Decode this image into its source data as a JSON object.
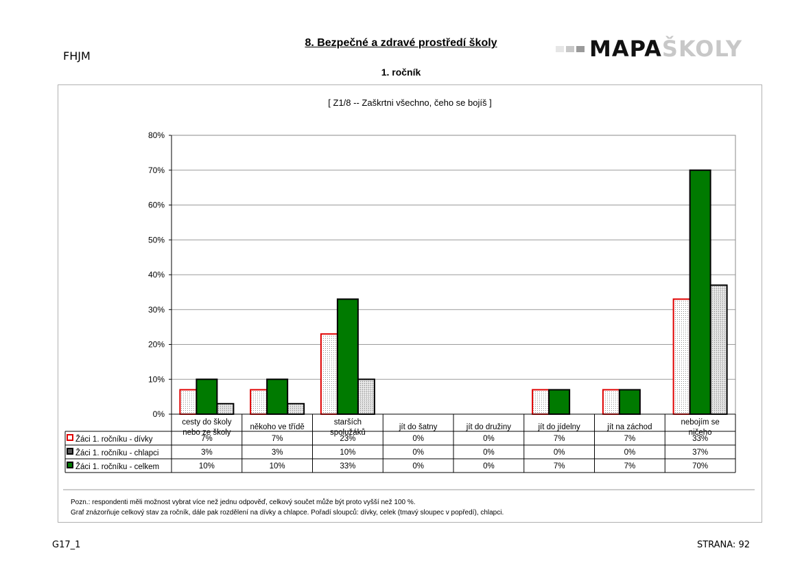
{
  "header": {
    "school_code": "FHJM",
    "title": "8. Bezpečné a zdravé prostředí školy",
    "subtitle": "1. ročník",
    "logo_dark": "MAPA",
    "logo_light": "ŠKOLY"
  },
  "footer": {
    "left": "G17_1",
    "right": "STRANA: 92"
  },
  "notes": [
    "Pozn.: respondenti měli možnost vybrat  více než jednu odpověď, celkový součet může být proto vyšší než 100 %.",
    "Graf znázorňuje celkový stav za ročník, dále pak rozdělení na dívky a chlapce. Pořadí sloupců: dívky, celek (tmavý sloupec v popředí), chlapci."
  ],
  "chart_data": {
    "type": "bar",
    "title": "[ Z1/8 -- Zaškrtni všechno, čeho se bojíš ]",
    "categories": [
      [
        "cesty do školy",
        "nebo ze školy"
      ],
      [
        "někoho ve třídě"
      ],
      [
        "starších",
        "spolužáků"
      ],
      [
        "jít do šatny"
      ],
      [
        "jít do družiny"
      ],
      [
        "jít do jídelny"
      ],
      [
        "jít na záchod"
      ],
      [
        "nebojím se",
        "ničeho"
      ]
    ],
    "ylim": [
      0,
      80
    ],
    "yticks": [
      "0%",
      "10%",
      "20%",
      "30%",
      "40%",
      "50%",
      "60%",
      "70%",
      "80%"
    ],
    "grid": true,
    "series": [
      {
        "name": "Žáci 1. ročníku - dívky",
        "values": [
          7,
          7,
          23,
          0,
          0,
          7,
          7,
          33
        ],
        "labels": [
          "7%",
          "7%",
          "23%",
          "0%",
          "0%",
          "7%",
          "7%",
          "33%"
        ],
        "color": "#ffffff",
        "edge": "#e00000",
        "pattern": "dots"
      },
      {
        "name": "Žáci 1. ročníku - chlapci",
        "values": [
          3,
          3,
          10,
          0,
          0,
          0,
          0,
          37
        ],
        "labels": [
          "3%",
          "3%",
          "10%",
          "0%",
          "0%",
          "0%",
          "0%",
          "37%"
        ],
        "color": "#d8d8d8",
        "edge": "#000000",
        "pattern": "grid"
      },
      {
        "name": "Žáci 1. ročníku - celkem",
        "values": [
          10,
          10,
          33,
          0,
          0,
          7,
          7,
          70
        ],
        "labels": [
          "10%",
          "10%",
          "33%",
          "0%",
          "0%",
          "7%",
          "7%",
          "70%"
        ],
        "color": "#007a00",
        "edge": "#000000",
        "pattern": "solid"
      }
    ]
  }
}
